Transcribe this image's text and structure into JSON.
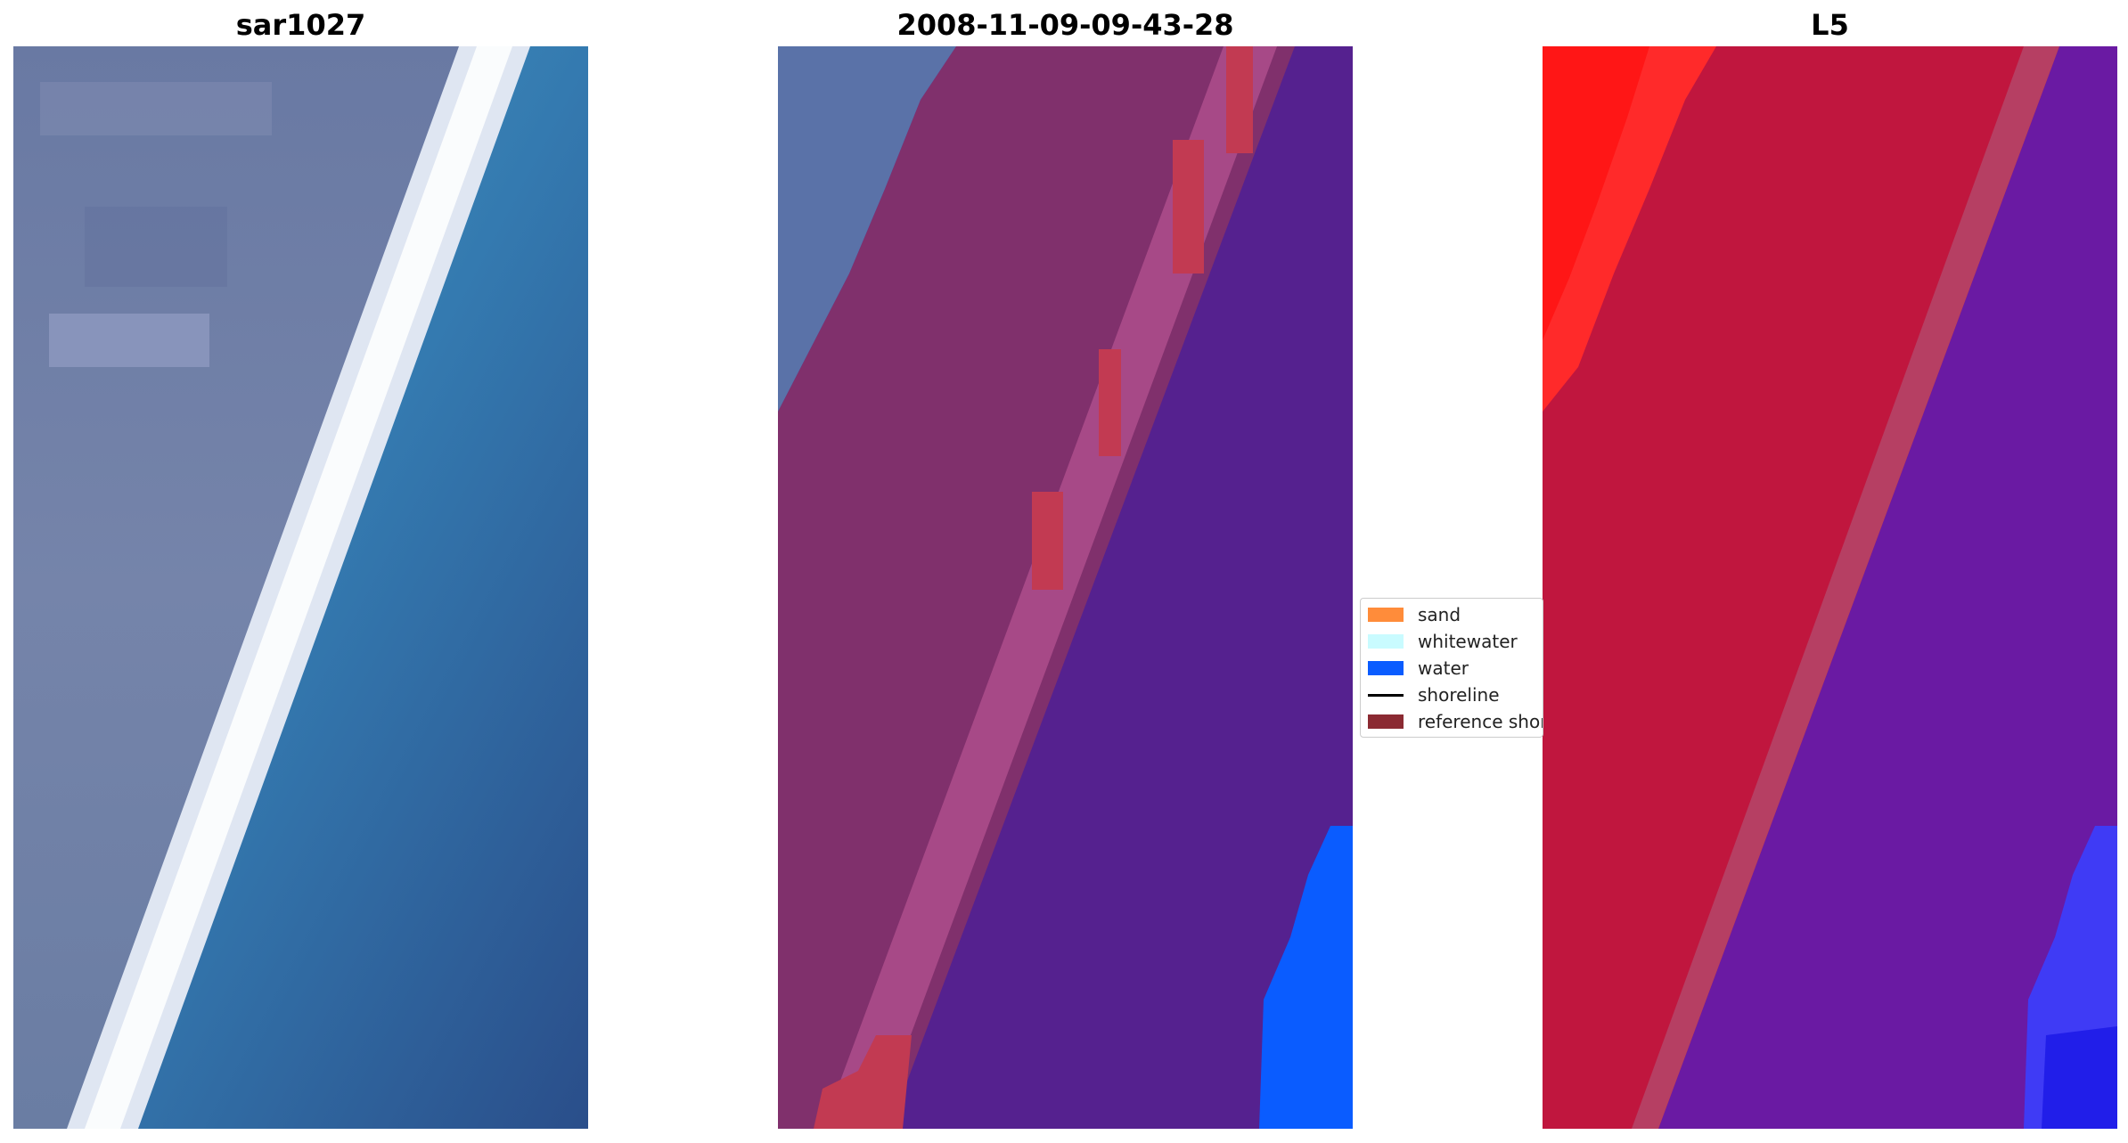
{
  "panels": [
    {
      "title": "sar1027",
      "image": "rgb-satellite-image"
    },
    {
      "title": "2008-11-09-09-43-28",
      "image": "classified-overlay-image"
    },
    {
      "title": "L5",
      "image": "mndwi-index-image"
    }
  ],
  "legend": {
    "items": [
      {
        "label": "sand",
        "color": "#ff8c3a",
        "kind": "patch"
      },
      {
        "label": "whitewater",
        "color": "#c9fbff",
        "kind": "patch"
      },
      {
        "label": "water",
        "color": "#0a5cff",
        "kind": "patch"
      },
      {
        "label": "shoreline",
        "color": "#000000",
        "kind": "line"
      },
      {
        "label": "reference shoreline",
        "color": "#8b2a32",
        "kind": "patch"
      }
    ]
  },
  "colors": {
    "land": "#6f7fa6",
    "surf": "#dfe8f3",
    "ocean": "#3576ad",
    "land_class": "#80306c",
    "sand_class": "#c23a52",
    "water_class": "#55218f",
    "water_blue": "#0a5cff",
    "index_land": "#c0163e",
    "index_water": "#6a1aa3"
  }
}
